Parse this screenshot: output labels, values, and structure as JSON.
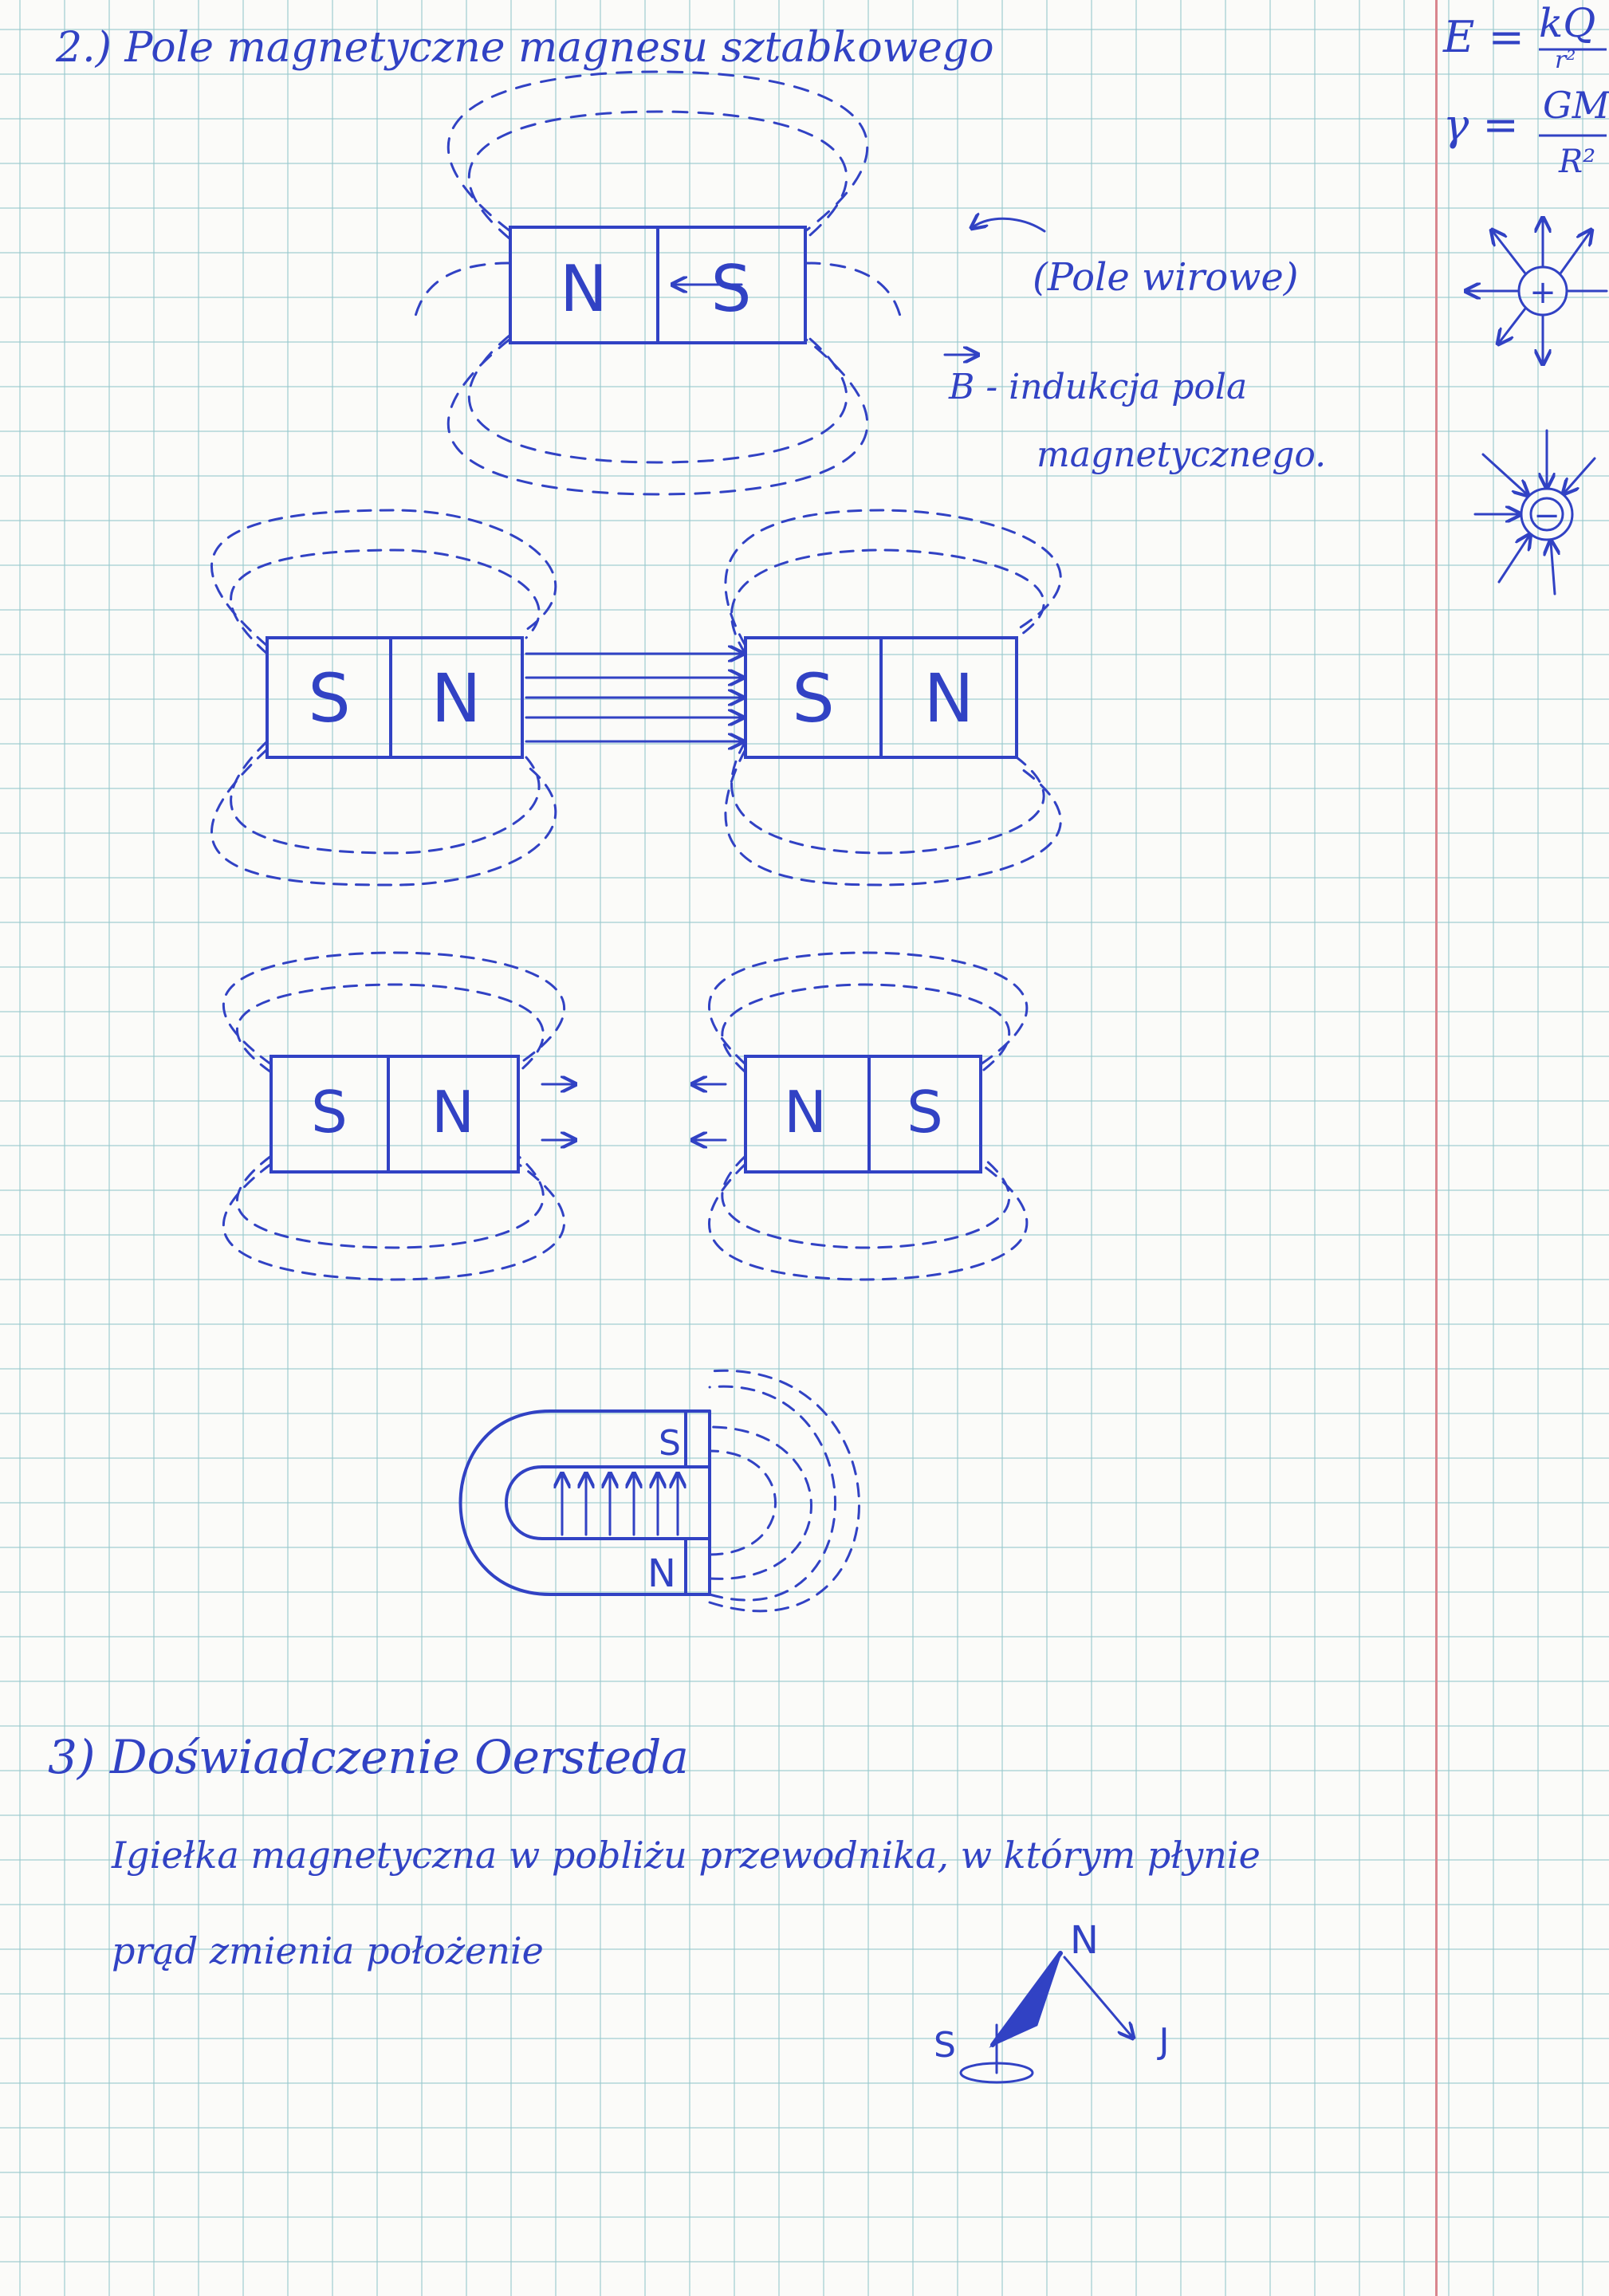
{
  "heading_2": "2.) Pole magnetyczne magnesu sztabkowego",
  "annotation_vortex": "(Pole wirowe)",
  "annotation_b": "B - indukcja pola",
  "annotation_b_2": "magnetycznego.",
  "poles": {
    "north": "N",
    "south": "S"
  },
  "side_formulas": {
    "coulomb_lhs": "E =",
    "coulomb_rhs_num": "kQ",
    "coulomb_rhs_den": "r²",
    "gravity_lhs": "γ =",
    "gravity_rhs_num": "GM",
    "gravity_rhs_den": "R²"
  },
  "charges": {
    "positive": "+",
    "negative": "−"
  },
  "heading_3": "3) Doświadczenie Oersteda",
  "oersted_line_1": "Igiełka magnetyczna w pobliżu przewodnika, w którym płynie",
  "oersted_line_2": "prąd zmienia położenie",
  "compass_labels": {
    "north": "N",
    "south": "S",
    "current": "J"
  },
  "colors": {
    "ink": "#3142c4",
    "grid": "#96c8cd",
    "margin": "#d9868e"
  }
}
